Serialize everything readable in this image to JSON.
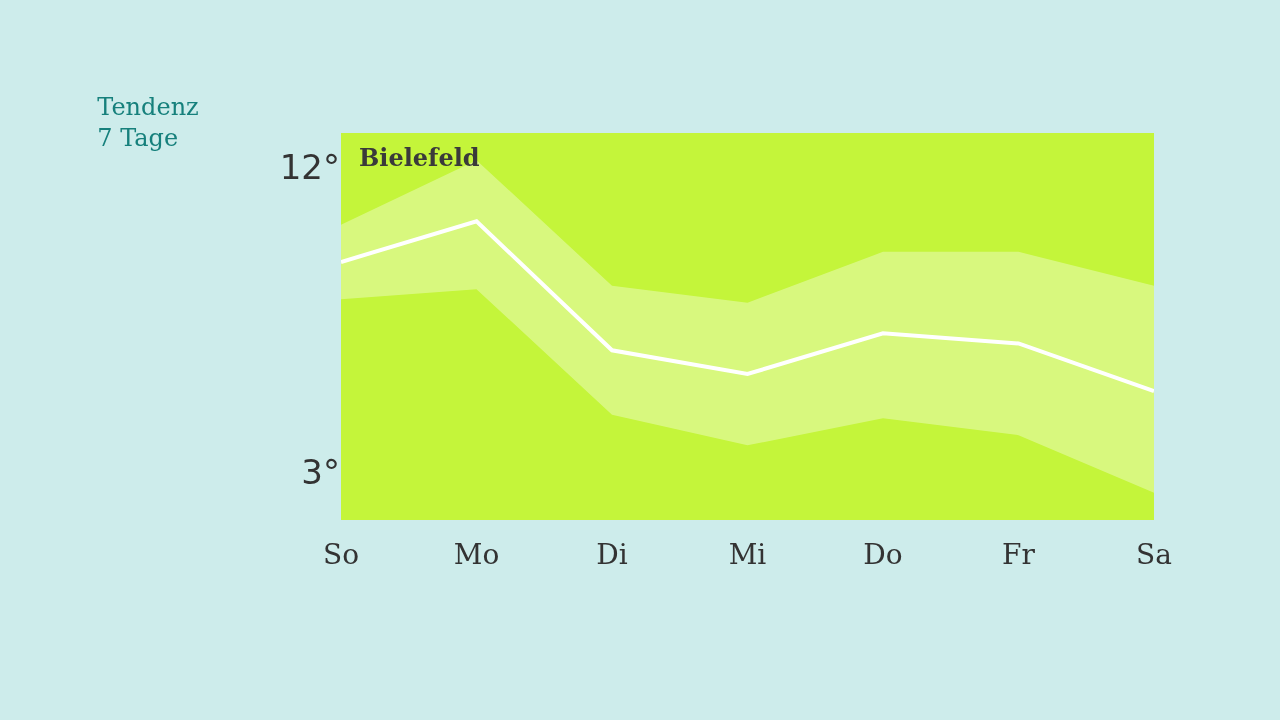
{
  "chart_data": {
    "type": "line",
    "title": "Tendenz\n7 Tage",
    "subtitle": "Bielefeld",
    "categories": [
      "So",
      "Mo",
      "Di",
      "Mi",
      "Do",
      "Fr",
      "Sa"
    ],
    "series": [
      {
        "color": "#ffffff",
        "values": [
          9.2,
          10.4,
          6.6,
          5.9,
          7.1,
          6.8,
          5.4
        ],
        "lower": [
          8.1,
          8.4,
          4.7,
          3.8,
          4.6,
          4.1,
          2.4
        ],
        "upper": [
          10.3,
          12.2,
          8.5,
          8.0,
          9.5,
          9.5,
          8.5
        ]
      }
    ],
    "ylim": [
      1.6,
      13
    ],
    "yticks": [
      {
        "value": 12,
        "label": "12°"
      },
      {
        "value": 3,
        "label": "3°"
      }
    ],
    "grid": false,
    "marker": "none",
    "line_style": "solid"
  }
}
